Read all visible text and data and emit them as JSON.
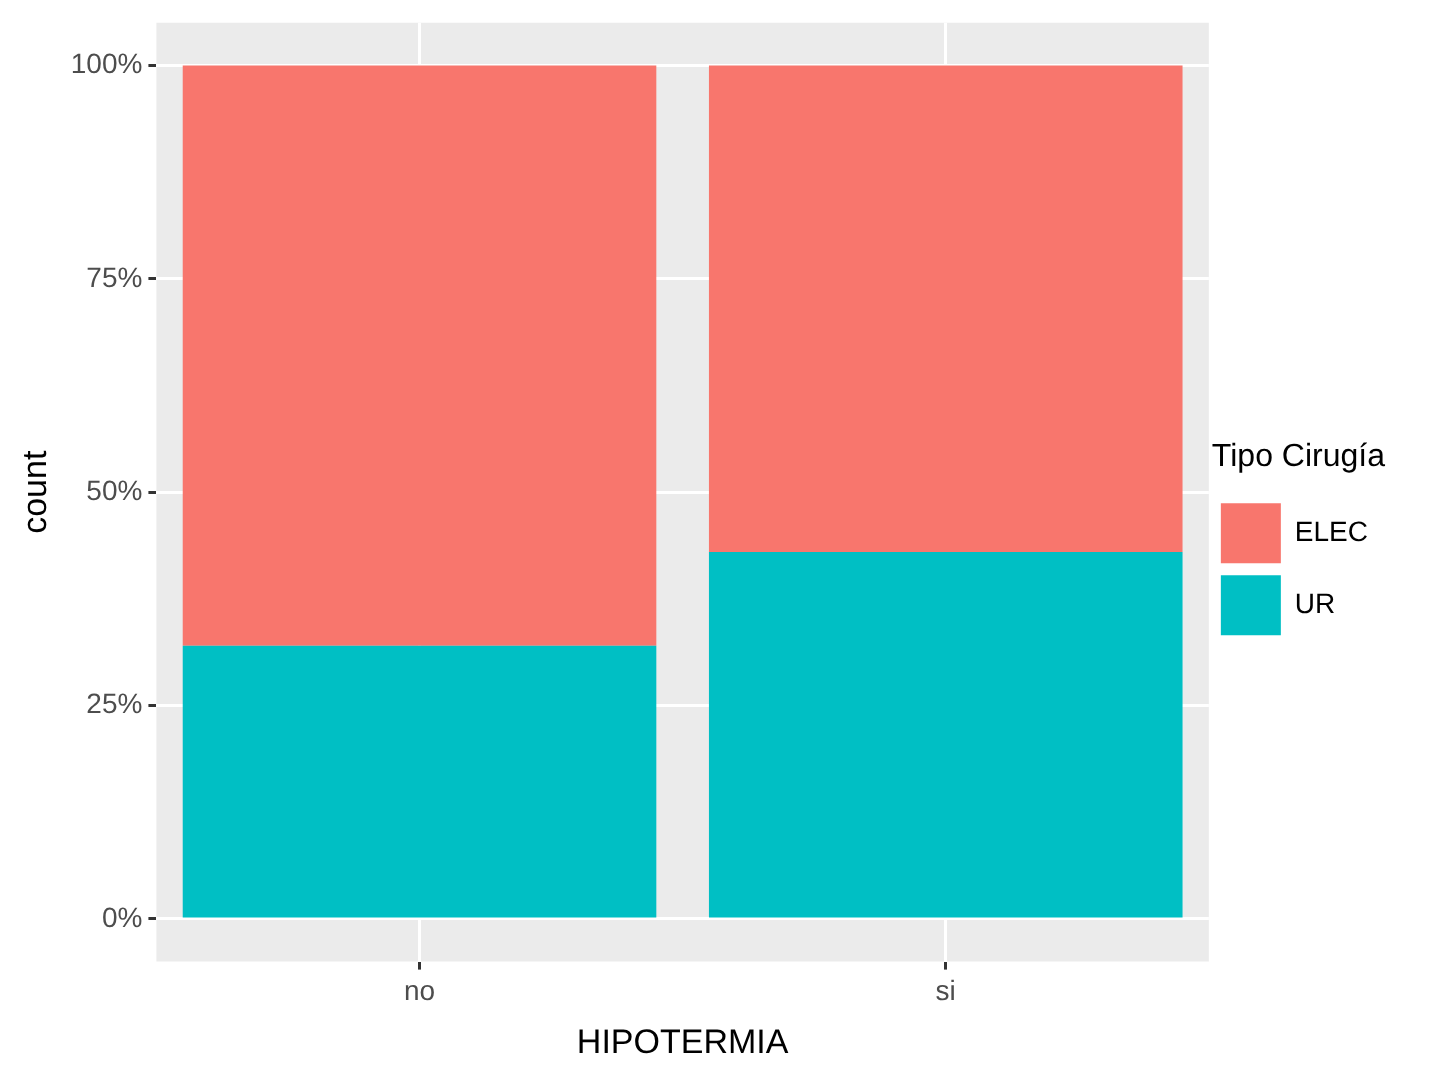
{
  "chart_data": {
    "type": "bar",
    "stacked": true,
    "xlabel": "HIPOTERMIA",
    "ylabel": "count",
    "legend_title": "Tipo Cirugía",
    "legend": "right",
    "grid": true,
    "categories": [
      "no",
      "si"
    ],
    "series": [
      {
        "name": "UR",
        "color": "#00bfc4",
        "values": [
          32,
          43
        ]
      },
      {
        "name": "ELEC",
        "color": "#f8766d",
        "values": [
          68,
          57
        ]
      }
    ],
    "ylim": [
      -5,
      105
    ],
    "yticks": [
      {
        "value": 0,
        "label": "0%"
      },
      {
        "value": 25,
        "label": "25%"
      },
      {
        "value": 50,
        "label": "50%"
      },
      {
        "value": 75,
        "label": "75%"
      },
      {
        "value": 100,
        "label": "100%"
      }
    ]
  }
}
